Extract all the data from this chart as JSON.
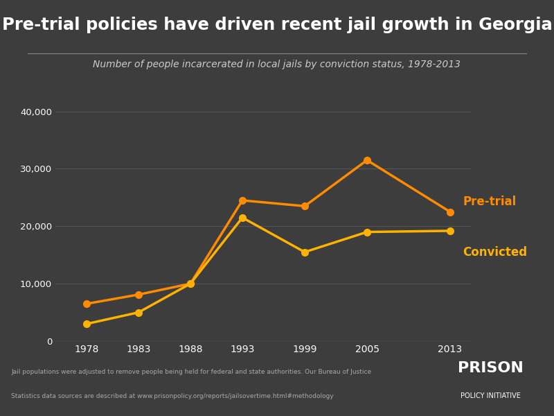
{
  "title": "Pre-trial policies have driven recent jail growth in Georgia",
  "subtitle": "Number of people incarcerated in local jails by conviction status, 1978-2013",
  "footnote1": "Jail populations were adjusted to remove people being held for federal and state authorities. Our Bureau of Justice",
  "footnote2": "Statistics data sources are described at www.prisonpolicy.org/reports/jailsovertime.html#methodology",
  "years": [
    1978,
    1983,
    1988,
    1993,
    1999,
    2005,
    2013
  ],
  "pretrial": [
    6500,
    8100,
    10000,
    24500,
    23500,
    31500,
    22500
  ],
  "convicted": [
    3000,
    5000,
    10000,
    21500,
    15500,
    19000,
    19200
  ],
  "pretrial_color": "#FF8C00",
  "convicted_color": "#FFB300",
  "pretrial_label": "Pre-trial",
  "convicted_label": "Convicted",
  "background_color": "#3d3d3d",
  "text_color": "#ffffff",
  "subtitle_color": "#cccccc",
  "footnote_color": "#aaaaaa",
  "grid_color": "#666666",
  "ylim": [
    0,
    42000
  ],
  "yticks": [
    0,
    10000,
    20000,
    30000,
    40000
  ],
  "line_width": 2.5,
  "marker_size": 7
}
